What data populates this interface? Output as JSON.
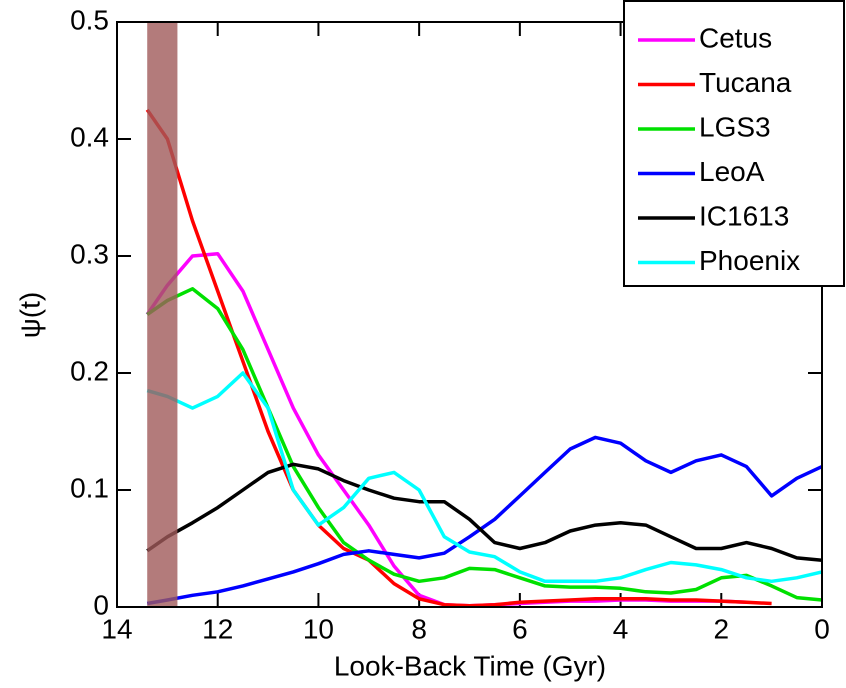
{
  "chart_data": {
    "type": "line",
    "xlabel": "Look-Back Time (Gyr)",
    "ylabel": "ψ(t)",
    "x": [
      13.4,
      13,
      12.5,
      12,
      11.5,
      11,
      10.5,
      10,
      9.5,
      9,
      8.5,
      8,
      7.5,
      7,
      6.5,
      6,
      5.5,
      5,
      4.5,
      4,
      3.5,
      3,
      2.5,
      2,
      1.5,
      1,
      0.5,
      0
    ],
    "xlim": [
      14,
      0
    ],
    "xticks": [
      14,
      12,
      10,
      8,
      6,
      4,
      2,
      0
    ],
    "ylim": [
      0,
      0.5
    ],
    "yticks": [
      0,
      0.1,
      0.2,
      0.3,
      0.4,
      0.5
    ],
    "legend": "upper right",
    "shade": {
      "x": [
        13.4,
        12.8
      ],
      "color": "#a05a5a"
    },
    "series": [
      {
        "name": "Cetus",
        "color": "#ff00ff",
        "values": [
          0.25,
          0.275,
          0.3,
          0.302,
          0.27,
          0.22,
          0.17,
          0.13,
          0.1,
          0.07,
          0.035,
          0.01,
          0.002,
          0.001,
          0.002,
          0.003,
          0.004,
          0.005,
          0.005,
          0.006,
          0.006,
          0.005,
          0.005,
          0.005,
          0.004,
          null,
          null,
          null
        ]
      },
      {
        "name": "Tucana",
        "color": "#ff0000",
        "values": [
          0.425,
          0.4,
          0.33,
          0.27,
          0.21,
          0.15,
          0.1,
          0.07,
          0.05,
          0.04,
          0.02,
          0.007,
          0.002,
          0.001,
          0.002,
          0.004,
          0.005,
          0.006,
          0.007,
          0.007,
          0.007,
          0.006,
          0.006,
          0.005,
          0.004,
          0.003,
          null,
          null
        ]
      },
      {
        "name": "LGS3",
        "color": "#00e000",
        "values": [
          0.25,
          0.262,
          0.272,
          0.255,
          0.22,
          0.17,
          0.12,
          0.085,
          0.055,
          0.04,
          0.028,
          0.022,
          0.025,
          0.033,
          0.032,
          0.025,
          0.018,
          0.017,
          0.017,
          0.016,
          0.013,
          0.012,
          0.015,
          0.025,
          0.027,
          0.018,
          0.008,
          0.006
        ]
      },
      {
        "name": "LeoA",
        "color": "#0000ff",
        "values": [
          0.003,
          0.006,
          0.01,
          0.013,
          0.018,
          0.024,
          0.03,
          0.037,
          0.045,
          0.048,
          0.045,
          0.042,
          0.046,
          0.06,
          0.075,
          0.095,
          0.115,
          0.135,
          0.145,
          0.14,
          0.125,
          0.115,
          0.125,
          0.13,
          0.12,
          0.095,
          0.11,
          0.12
        ]
      },
      {
        "name": "IC1613",
        "color": "#000000",
        "values": [
          0.048,
          0.06,
          0.072,
          0.085,
          0.1,
          0.115,
          0.122,
          0.118,
          0.108,
          0.1,
          0.093,
          0.09,
          0.09,
          0.075,
          0.055,
          0.05,
          0.055,
          0.065,
          0.07,
          0.072,
          0.07,
          0.06,
          0.05,
          0.05,
          0.055,
          0.05,
          0.042,
          0.04
        ]
      },
      {
        "name": "Phoenix",
        "color": "#00ffff",
        "values": [
          0.185,
          0.18,
          0.17,
          0.18,
          0.2,
          0.17,
          0.1,
          0.07,
          0.085,
          0.11,
          0.115,
          0.1,
          0.06,
          0.047,
          0.043,
          0.03,
          0.022,
          0.022,
          0.022,
          0.025,
          0.032,
          0.038,
          0.036,
          0.032,
          0.025,
          0.022,
          0.025,
          0.03
        ]
      }
    ]
  }
}
